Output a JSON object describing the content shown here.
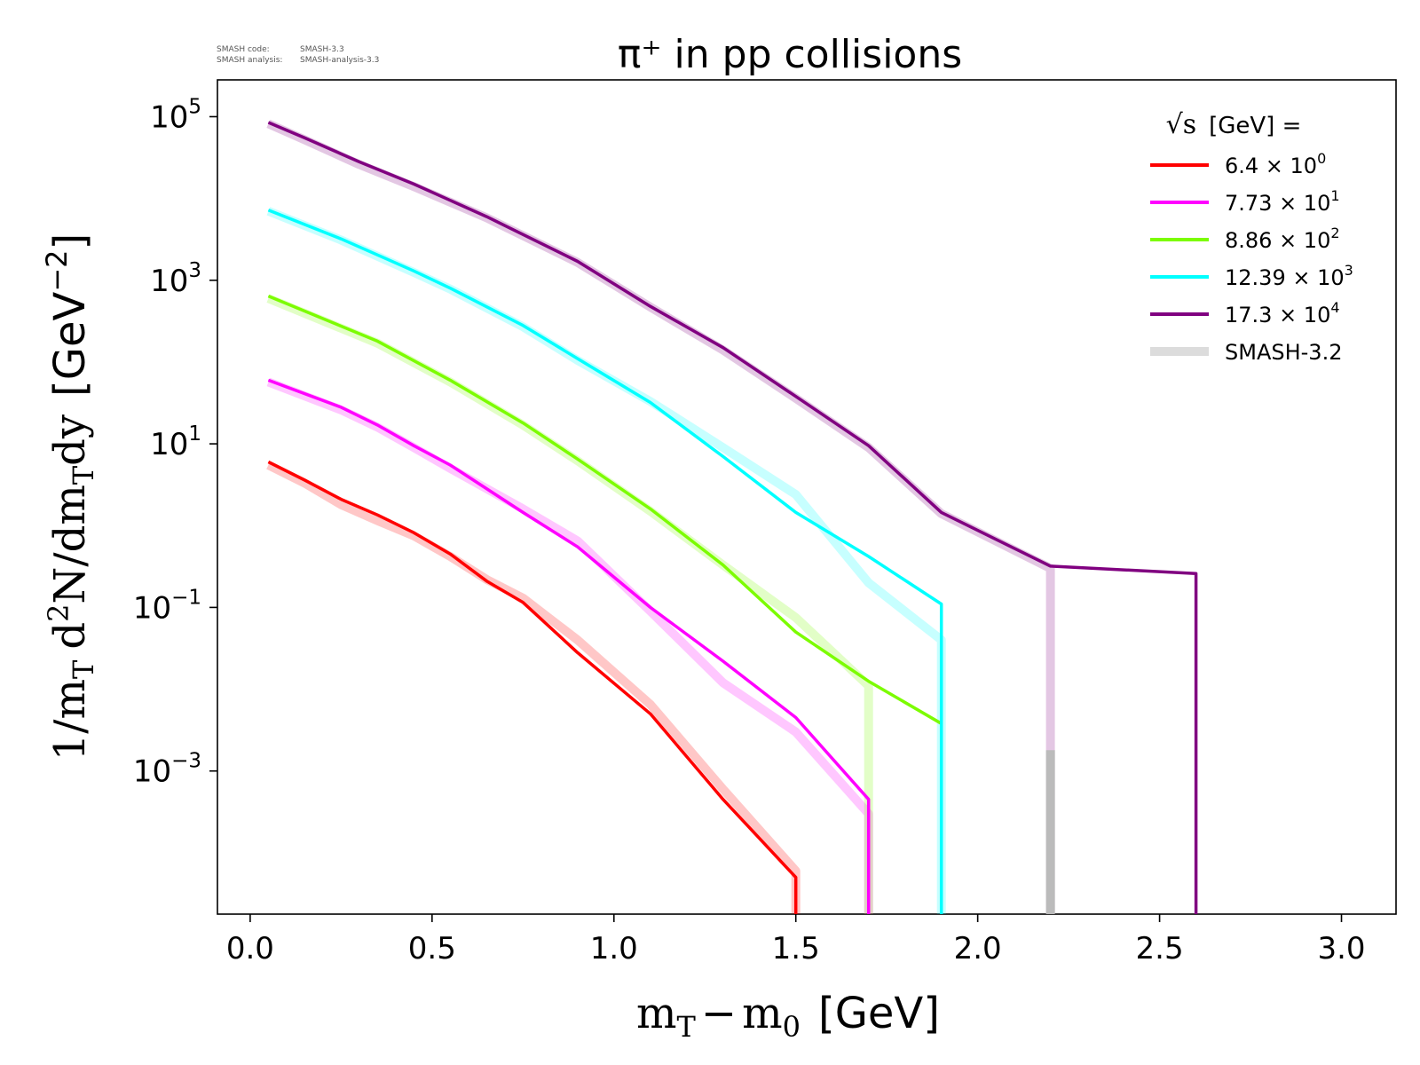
{
  "version_info": {
    "line1_key": "SMASH code:",
    "line1_val": "SMASH-3.3",
    "line2_key": "SMASH analysis:",
    "line2_val": "SMASH-analysis-3.3"
  },
  "chart_data": {
    "type": "line",
    "title": "π⁺ in pp collisions",
    "xlabel_math": "m",
    "xlabel_sub1": "T",
    "xlabel_minus": "−",
    "xlabel_math2": "m",
    "xlabel_sub2": "0",
    "xlabel_unit": "[GeV]",
    "ylabel_pre": "1/m",
    "ylabel_sub1": "T",
    "ylabel_d": "d",
    "ylabel_sup": "2",
    "ylabel_mid": "N/dm",
    "ylabel_sub2": "T",
    "ylabel_dy": "dy",
    "ylabel_unit": "[GeV",
    "ylabel_unit_sup": "−2",
    "ylabel_unit_close": "]",
    "xlim": [
      -0.09,
      3.15
    ],
    "ylim_log10": [
      -4.75,
      5.45
    ],
    "yscale": "log",
    "grid": false,
    "legend_placement": "top-right",
    "legend_title_sqrt": "√s",
    "legend_title_rest": "[GeV] =",
    "x_ticks": [
      {
        "value": 0.0,
        "label": "0.0"
      },
      {
        "value": 0.5,
        "label": "0.5"
      },
      {
        "value": 1.0,
        "label": "1.0"
      },
      {
        "value": 1.5,
        "label": "1.5"
      },
      {
        "value": 2.0,
        "label": "2.0"
      },
      {
        "value": 2.5,
        "label": "2.5"
      },
      {
        "value": 3.0,
        "label": "3.0"
      }
    ],
    "y_ticks": [
      {
        "exp": 5,
        "base": "10",
        "sup": "5"
      },
      {
        "exp": 3,
        "base": "10",
        "sup": "3"
      },
      {
        "exp": 1,
        "base": "10",
        "sup": "1"
      },
      {
        "exp": -1,
        "base": "10",
        "sup": "−1"
      },
      {
        "exp": -3,
        "base": "10",
        "sup": "−3"
      }
    ],
    "series": [
      {
        "name": "6.4 × 10⁰",
        "legend_base": "6.4 × 10",
        "legend_sup": "0",
        "color": "#ff0000",
        "x": [
          0.05,
          0.15,
          0.25,
          0.35,
          0.45,
          0.55,
          0.65,
          0.75,
          0.9,
          1.1,
          1.3,
          1.5,
          1.5
        ],
        "y": [
          6.0,
          3.6,
          2.1,
          1.35,
          0.82,
          0.45,
          0.21,
          0.115,
          0.028,
          0.005,
          0.00045,
          5e-05,
          1.78e-05
        ],
        "ref_y": [
          5.5,
          3.3,
          1.8,
          1.15,
          0.75,
          0.42,
          0.22,
          0.13,
          0.04,
          0.0065,
          0.0006,
          6e-05,
          1.78e-05
        ]
      },
      {
        "name": "7.73 × 10¹",
        "legend_base": "7.73 × 10",
        "legend_sup": "1",
        "color": "#ff00ff",
        "x": [
          0.05,
          0.25,
          0.35,
          0.45,
          0.55,
          0.75,
          0.9,
          1.1,
          1.3,
          1.5,
          1.7,
          1.7
        ],
        "y": [
          60,
          28,
          17,
          9.5,
          5.5,
          1.45,
          0.55,
          0.1,
          0.022,
          0.0045,
          0.00045,
          1.78e-05
        ],
        "ref_y": [
          57,
          26,
          16,
          9.0,
          5.0,
          1.6,
          0.65,
          0.09,
          0.012,
          0.003,
          0.0003,
          1.78e-05
        ]
      },
      {
        "name": "8.86 × 10²",
        "legend_base": "8.86 × 10",
        "legend_sup": "2",
        "color": "#7cfc00",
        "x": [
          0.05,
          0.35,
          0.55,
          0.75,
          0.9,
          1.1,
          1.3,
          1.5,
          1.7,
          1.9
        ],
        "y": [
          640,
          180,
          60,
          18,
          6.5,
          1.6,
          0.33,
          0.05,
          0.0125,
          0.0038
        ],
        "ref_y": [
          600,
          170,
          57,
          17,
          6.2,
          1.5,
          0.33,
          0.075,
          0.011,
          1.78e-05
        ],
        "ref_x": [
          0.05,
          0.35,
          0.55,
          0.75,
          0.9,
          1.1,
          1.3,
          1.5,
          1.7,
          1.7
        ]
      },
      {
        "name": "12.39 × 10³",
        "legend_base": "12.39 × 10",
        "legend_sup": "3",
        "color": "#00ffff",
        "x": [
          0.05,
          0.25,
          0.45,
          0.55,
          0.75,
          0.9,
          1.1,
          1.3,
          1.5,
          1.7,
          1.9,
          1.9
        ],
        "y": [
          7200,
          3200,
          1300,
          800,
          280,
          110,
          32,
          7,
          1.45,
          0.42,
          0.11,
          1.78e-05
        ],
        "ref_y": [
          7000,
          3100,
          1250,
          780,
          270,
          105,
          33,
          9,
          2.4,
          0.2,
          0.04,
          1.78e-05
        ]
      },
      {
        "name": "17.3 × 10⁴",
        "legend_base": "17.3 × 10",
        "legend_sup": "4",
        "color": "#800080",
        "x": [
          0.05,
          0.15,
          0.3,
          0.45,
          0.65,
          0.9,
          1.1,
          1.3,
          1.5,
          1.7,
          1.9,
          2.2,
          2.6,
          2.6
        ],
        "y": [
          85000,
          55000,
          28000,
          15000,
          6000,
          1700,
          480,
          150,
          38,
          9.5,
          1.45,
          0.32,
          0.26,
          1.78e-05
        ],
        "ref_y": [
          82000,
          52000,
          26000,
          14000,
          5800,
          1650,
          470,
          140,
          36,
          9,
          1.4,
          0.3,
          1.78e-05
        ],
        "ref_x": [
          0.05,
          0.15,
          0.3,
          0.45,
          0.65,
          0.9,
          1.1,
          1.3,
          1.5,
          1.7,
          1.9,
          2.2,
          2.2
        ]
      }
    ],
    "reference": {
      "name": "SMASH-3.2",
      "color": "#dcdcdc",
      "gray_bar_x": 2.2,
      "gray_bar_y_top": 0.0018,
      "gray_bar_color": "#bbbbbb"
    }
  }
}
